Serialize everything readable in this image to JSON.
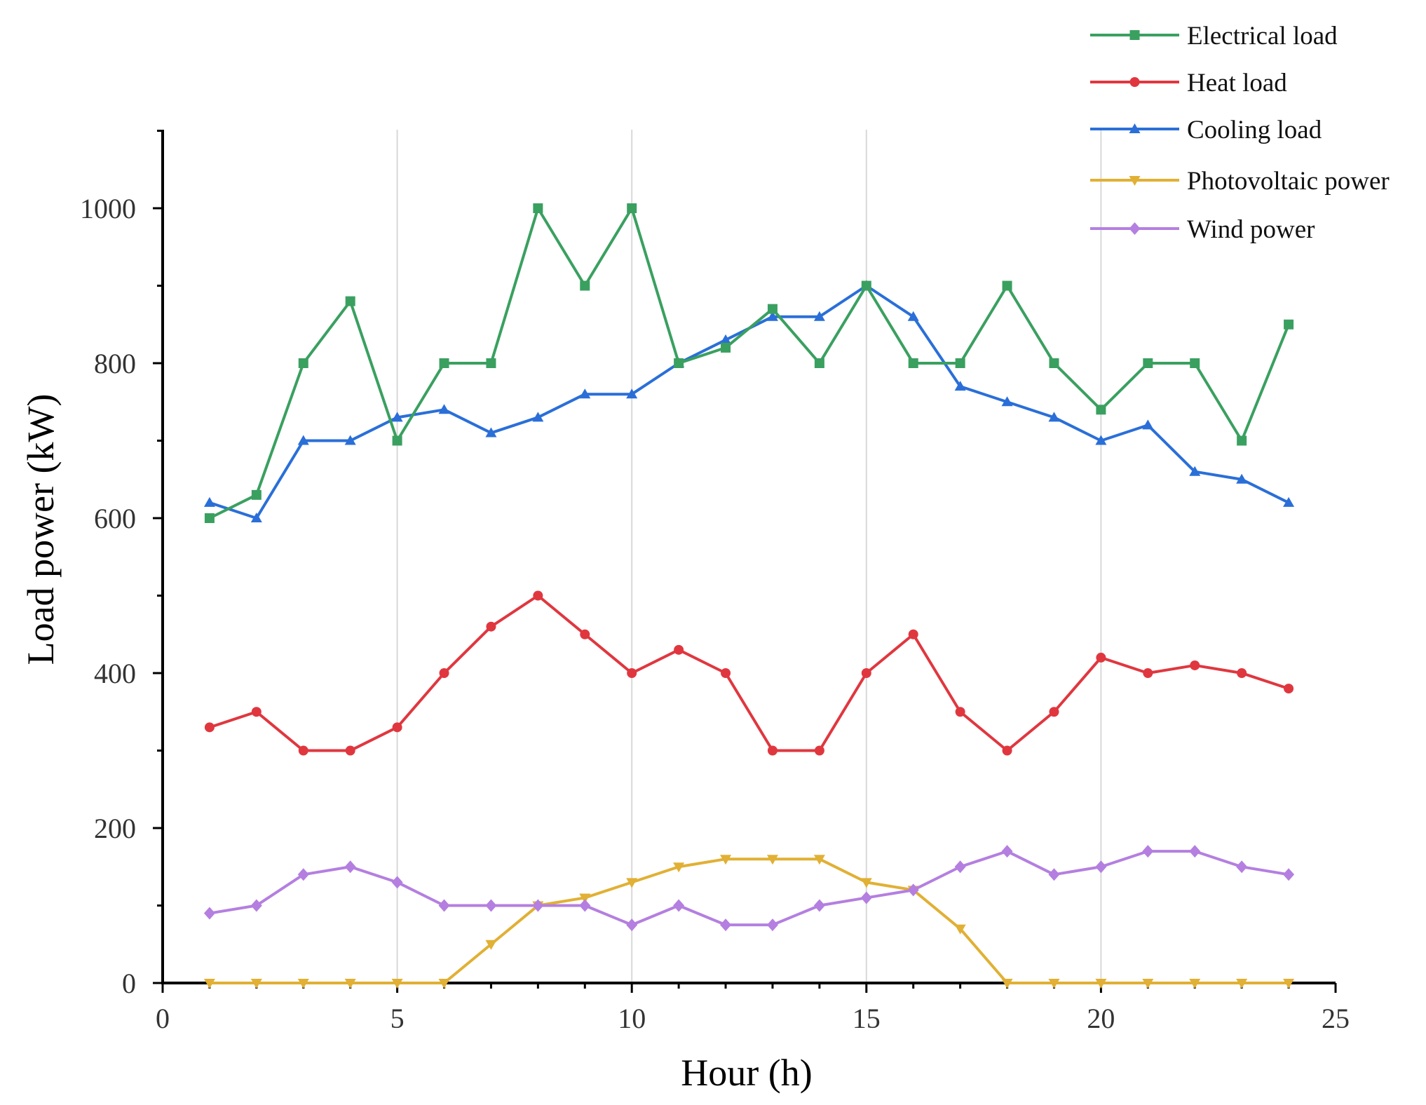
{
  "chart_data": {
    "type": "line",
    "title": "",
    "xlabel": "Hour (h)",
    "ylabel": "Load power (kW)",
    "xlim": [
      0,
      25
    ],
    "ylim": [
      0,
      1100
    ],
    "xticks": [
      0,
      5,
      10,
      15,
      20,
      25
    ],
    "yticks": [
      0,
      200,
      400,
      600,
      800,
      1000
    ],
    "x": [
      1,
      2,
      3,
      4,
      5,
      6,
      7,
      8,
      9,
      10,
      11,
      12,
      13,
      14,
      15,
      16,
      17,
      18,
      19,
      20,
      21,
      22,
      23,
      24
    ],
    "grid": "vertical",
    "legend_position": "top-right",
    "series": [
      {
        "name": "Electrical load",
        "color": "#3aa060",
        "marker": "square",
        "values": [
          600,
          630,
          800,
          880,
          700,
          800,
          800,
          1000,
          900,
          1000,
          800,
          820,
          870,
          800,
          900,
          800,
          800,
          900,
          800,
          740,
          800,
          800,
          700,
          850
        ]
      },
      {
        "name": "Heat load",
        "color": "#e0373f",
        "marker": "circle",
        "values": [
          330,
          350,
          300,
          300,
          330,
          400,
          460,
          500,
          450,
          400,
          430,
          400,
          300,
          300,
          400,
          450,
          350,
          300,
          350,
          420,
          400,
          410,
          400,
          380
        ]
      },
      {
        "name": "Cooling load",
        "color": "#2a6fd8",
        "marker": "triangle-up",
        "values": [
          620,
          600,
          700,
          700,
          730,
          740,
          710,
          730,
          760,
          760,
          800,
          830,
          860,
          860,
          900,
          860,
          770,
          750,
          730,
          700,
          720,
          660,
          650,
          620
        ]
      },
      {
        "name": "Photovoltaic power",
        "color": "#e1b034",
        "marker": "triangle-down",
        "values": [
          0,
          0,
          0,
          0,
          0,
          0,
          50,
          100,
          110,
          130,
          150,
          160,
          160,
          160,
          130,
          120,
          70,
          0,
          0,
          0,
          0,
          0,
          0,
          0
        ]
      },
      {
        "name": "Wind power",
        "color": "#b47fe0",
        "marker": "diamond",
        "values": [
          90,
          100,
          140,
          150,
          130,
          100,
          100,
          100,
          100,
          75,
          100,
          75,
          75,
          100,
          110,
          120,
          150,
          170,
          140,
          150,
          170,
          170,
          150,
          140
        ]
      }
    ]
  }
}
